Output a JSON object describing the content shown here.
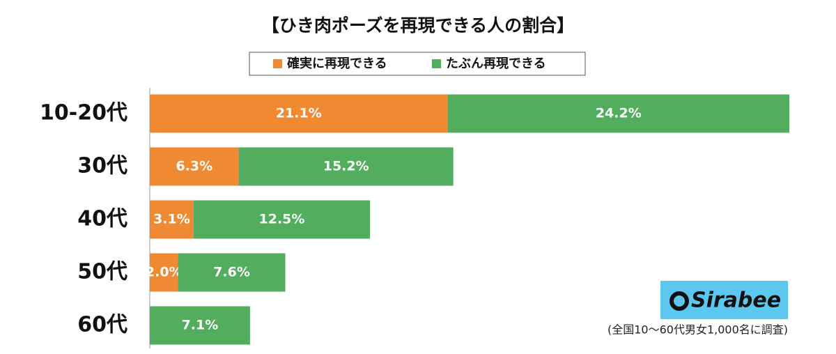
{
  "chart_data": {
    "type": "stacked-bar-horizontal",
    "title": "【ひき肉ポーズを再現できる人の割合】",
    "categories": [
      "10-20代",
      "30代",
      "40代",
      "50代",
      "60代"
    ],
    "series": [
      {
        "name": "確実に再現できる",
        "color": "#ef8a33",
        "values": [
          21.1,
          6.3,
          3.1,
          2.0,
          null
        ],
        "value_labels": [
          "21.1%",
          "6.3%",
          "3.1%",
          "2.0%",
          null
        ]
      },
      {
        "name": "たぶん再現できる",
        "color": "#52ad5f",
        "values": [
          24.2,
          15.2,
          12.5,
          7.6,
          7.1
        ],
        "value_labels": [
          "24.2%",
          "15.2%",
          "12.5%",
          "7.6%",
          "7.1%"
        ]
      }
    ],
    "logo": "Sirabee",
    "note": "(全国10〜60代男女1,000名に調査)"
  }
}
